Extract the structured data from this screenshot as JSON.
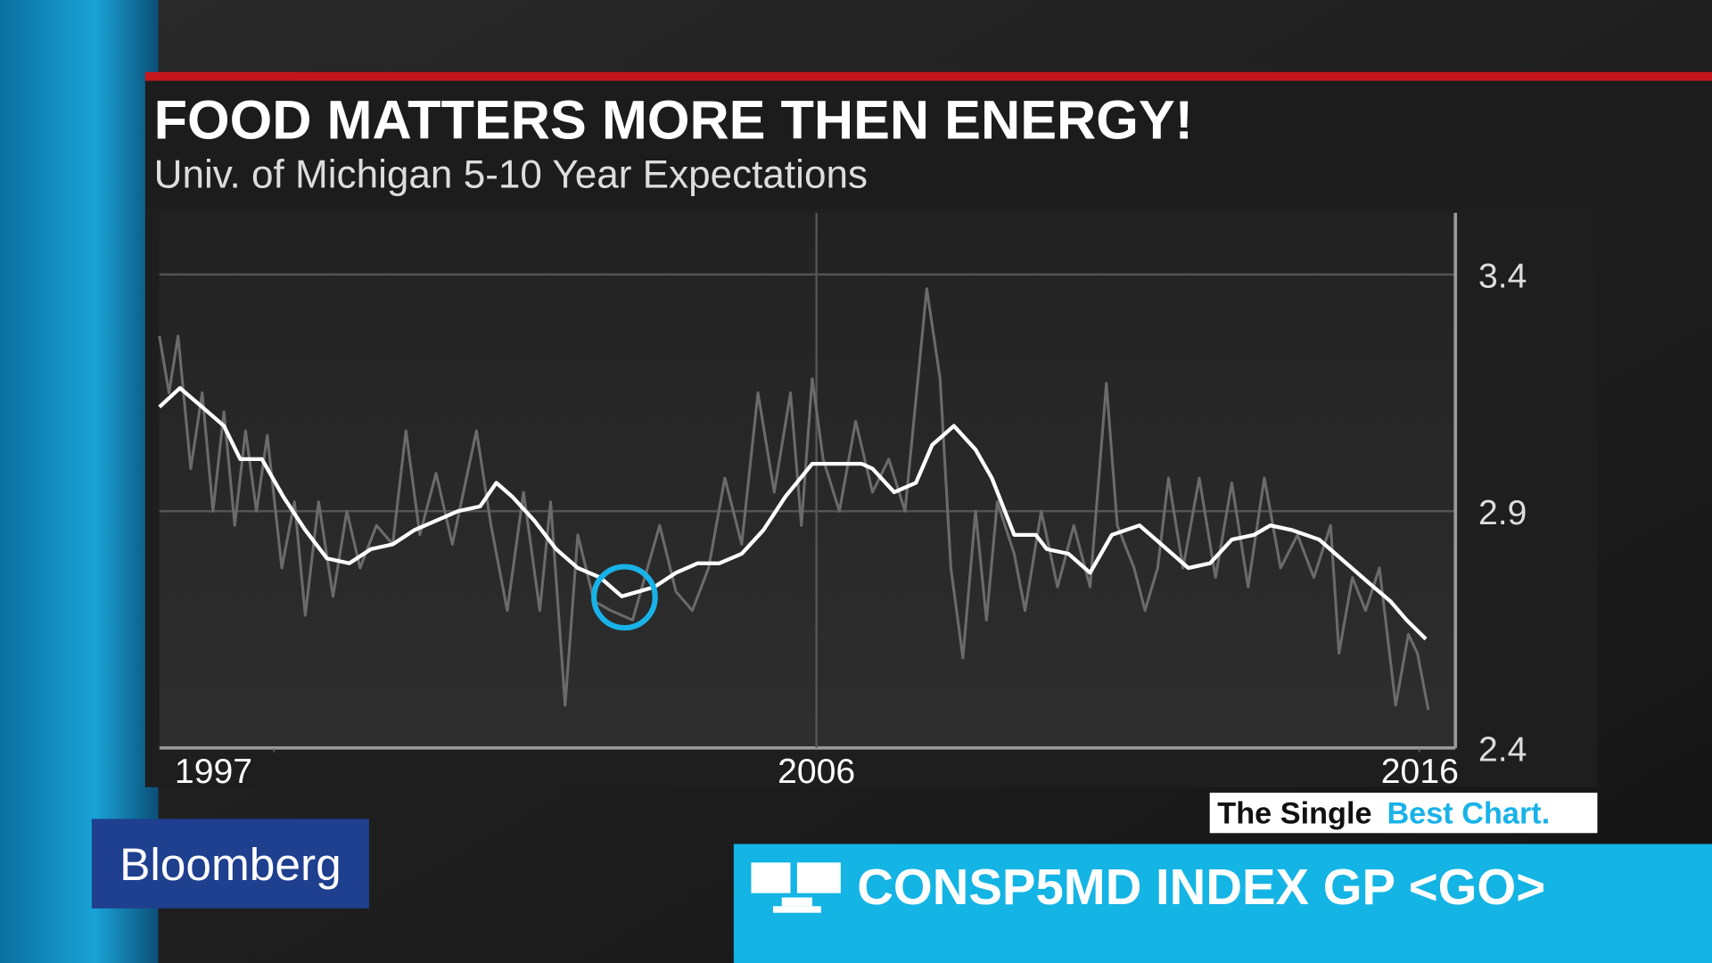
{
  "chart_data": {
    "type": "line",
    "title": "FOOD MATTERS MORE THEN ENERGY!",
    "subtitle": "Univ. of Michigan 5-10 Year Expectations",
    "xlim": [
      1995.1,
      2016.6
    ],
    "xticks": [
      1997,
      2006,
      2016
    ],
    "ylim": [
      2.4,
      3.53
    ],
    "yticks": [
      2.4,
      2.9,
      3.4
    ],
    "grid": true,
    "series": [
      {
        "color": "#6b6b6b",
        "x": [
          1995.1,
          1995.26,
          1995.41,
          1995.62,
          1995.81,
          1995.99,
          1996.17,
          1996.35,
          1996.53,
          1996.71,
          1996.89,
          1997.13,
          1997.34,
          1997.52,
          1997.74,
          1997.98,
          1998.21,
          1998.43,
          1998.7,
          1998.97,
          1999.19,
          1999.42,
          1999.69,
          1999.96,
          2000.36,
          2000.6,
          2000.87,
          2001.14,
          2001.41,
          2001.59,
          2001.83,
          2002.04,
          2002.31,
          2002.59,
          2002.95,
          2003.13,
          2003.4,
          2003.67,
          2003.94,
          2004.21,
          2004.48,
          2004.76,
          2005.03,
          2005.3,
          2005.57,
          2005.75,
          2005.93,
          2006.11,
          2006.38,
          2006.65,
          2006.93,
          2007.2,
          2007.47,
          2007.83,
          2008.05,
          2008.23,
          2008.43,
          2008.64,
          2008.82,
          2009.0,
          2009.28,
          2009.46,
          2009.73,
          2010.0,
          2010.27,
          2010.54,
          2010.81,
          2010.99,
          2011.27,
          2011.45,
          2011.66,
          2011.84,
          2012.08,
          2012.35,
          2012.62,
          2012.89,
          2013.16,
          2013.43,
          2013.7,
          2013.98,
          2014.25,
          2014.53,
          2014.67,
          2014.89,
          2015.11,
          2015.34,
          2015.61,
          2015.82,
          2015.97,
          2016.15
        ],
        "values": [
          3.27,
          3.15,
          3.27,
          2.99,
          3.15,
          2.9,
          3.11,
          2.87,
          3.07,
          2.9,
          3.06,
          2.78,
          2.92,
          2.68,
          2.92,
          2.72,
          2.9,
          2.78,
          2.87,
          2.83,
          3.07,
          2.85,
          2.98,
          2.83,
          3.07,
          2.87,
          2.69,
          2.94,
          2.69,
          2.92,
          2.49,
          2.85,
          2.71,
          2.69,
          2.67,
          2.75,
          2.87,
          2.73,
          2.69,
          2.78,
          2.97,
          2.83,
          3.15,
          2.94,
          3.15,
          2.87,
          3.18,
          3.01,
          2.9,
          3.09,
          2.94,
          3.01,
          2.9,
          3.37,
          3.18,
          2.78,
          2.59,
          2.9,
          2.67,
          2.92,
          2.81,
          2.69,
          2.9,
          2.74,
          2.87,
          2.74,
          3.17,
          2.87,
          2.78,
          2.69,
          2.78,
          2.97,
          2.78,
          2.97,
          2.76,
          2.96,
          2.74,
          2.97,
          2.78,
          2.85,
          2.76,
          2.87,
          2.6,
          2.76,
          2.69,
          2.78,
          2.49,
          2.64,
          2.6,
          2.48
        ]
      },
      {
        "color": "#ffffff",
        "x": [
          1995.1,
          1995.44,
          1995.81,
          1996.17,
          1996.44,
          1996.8,
          1997.16,
          1997.52,
          1997.88,
          1998.25,
          1998.61,
          1998.97,
          1999.33,
          1999.69,
          2000.05,
          2000.42,
          2000.69,
          2000.96,
          2001.32,
          2001.68,
          2002.04,
          2002.41,
          2002.77,
          2003.04,
          2003.31,
          2003.67,
          2004.03,
          2004.39,
          2004.76,
          2005.12,
          2005.48,
          2005.93,
          2006.29,
          2006.75,
          2006.93,
          2007.29,
          2007.65,
          2007.92,
          2008.28,
          2008.64,
          2008.91,
          2009.28,
          2009.64,
          2009.82,
          2010.18,
          2010.54,
          2010.9,
          2011.36,
          2011.72,
          2012.17,
          2012.53,
          2012.89,
          2013.26,
          2013.53,
          2013.89,
          2014.34,
          2014.79,
          2015.15,
          2015.52,
          2015.79,
          2016.11
        ],
        "values": [
          3.12,
          3.16,
          3.12,
          3.08,
          3.01,
          3.01,
          2.93,
          2.86,
          2.8,
          2.79,
          2.82,
          2.83,
          2.86,
          2.88,
          2.9,
          2.91,
          2.96,
          2.93,
          2.88,
          2.82,
          2.78,
          2.76,
          2.72,
          2.73,
          2.74,
          2.77,
          2.79,
          2.79,
          2.81,
          2.86,
          2.93,
          3.0,
          3.0,
          3.0,
          2.99,
          2.94,
          2.96,
          3.04,
          3.08,
          3.03,
          2.97,
          2.85,
          2.85,
          2.82,
          2.81,
          2.77,
          2.85,
          2.87,
          2.83,
          2.78,
          2.79,
          2.84,
          2.85,
          2.87,
          2.86,
          2.84,
          2.79,
          2.75,
          2.71,
          2.67,
          2.63
        ]
      }
    ]
  },
  "branding": {
    "segment_name": [
      "The Single",
      "Best Chart."
    ],
    "logo": "Bloomberg",
    "ticker": "CONSP5MD INDEX GP <GO>"
  }
}
